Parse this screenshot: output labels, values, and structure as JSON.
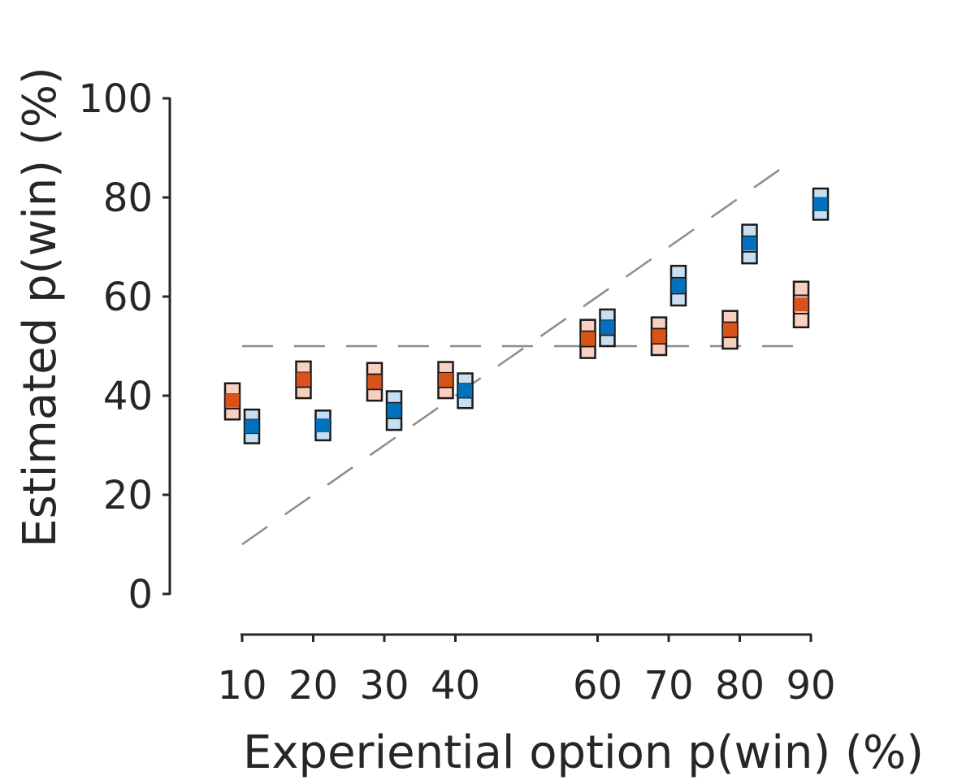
{
  "chart_data": {
    "type": "scatter",
    "xlabel": "Experiential option p(win) (%)",
    "ylabel": "Estimated p(win) (%)",
    "xticks": [
      10,
      20,
      30,
      40,
      60,
      70,
      80,
      90
    ],
    "yticks": [
      0,
      20,
      40,
      60,
      80,
      100
    ],
    "xlim": [
      10,
      90
    ],
    "ylim": [
      0,
      100
    ],
    "grid": false,
    "reference_lines": [
      {
        "kind": "identity",
        "x": [
          10,
          88
        ],
        "y": [
          10,
          88
        ]
      },
      {
        "kind": "chance",
        "x": [
          10,
          90
        ],
        "y": [
          50,
          50
        ]
      }
    ],
    "series": [
      {
        "color": "#d95319",
        "band_color": "#f9d0c0",
        "x": [
          10,
          20,
          30,
          40,
          60,
          70,
          80,
          90
        ],
        "y": [
          39.0,
          43.3,
          42.8,
          43.2,
          51.5,
          52.0,
          53.3,
          58.4
        ],
        "ci_low": [
          35.2,
          39.5,
          39.0,
          39.5,
          47.6,
          48.2,
          49.5,
          53.8
        ],
        "ci_high": [
          42.5,
          46.9,
          46.6,
          46.8,
          55.3,
          55.8,
          57.1,
          63.0
        ]
      },
      {
        "color": "#0072bd",
        "band_color": "#c6dff2",
        "x": [
          10,
          20,
          30,
          40,
          60,
          70,
          80,
          90
        ],
        "y": [
          33.8,
          34.0,
          37.0,
          41.0,
          53.8,
          62.2,
          70.7,
          78.7
        ],
        "ci_low": [
          30.4,
          31.0,
          33.1,
          37.5,
          50.0,
          58.2,
          66.7,
          75.5
        ],
        "ci_high": [
          37.2,
          37.0,
          40.9,
          44.5,
          57.4,
          66.2,
          74.5,
          81.8
        ]
      }
    ]
  }
}
